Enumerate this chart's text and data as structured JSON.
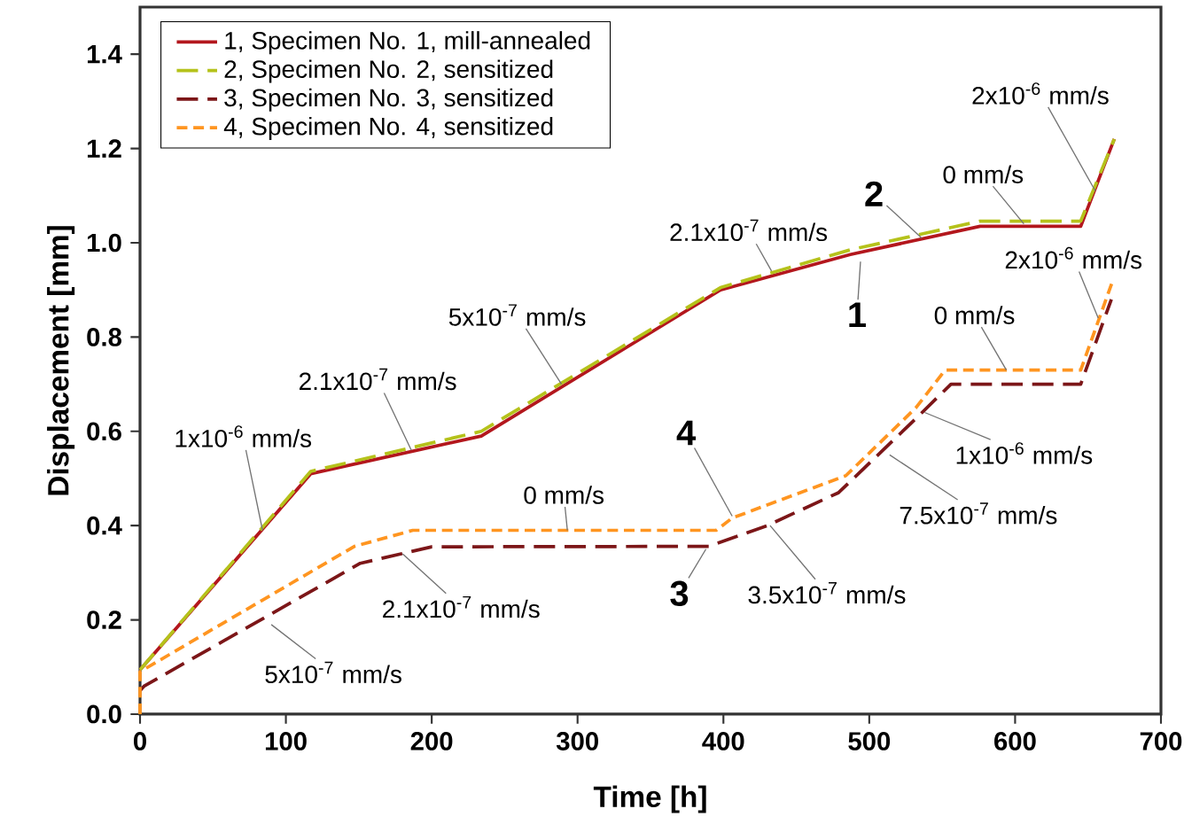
{
  "chart_data": {
    "type": "line",
    "xlabel": "Time [h]",
    "ylabel": "Displacement [mm]",
    "xlim": [
      0,
      700
    ],
    "ylim": [
      0,
      1.5
    ],
    "xticks": [
      0,
      100,
      200,
      300,
      400,
      500,
      600,
      700
    ],
    "yticks": [
      {
        "value": 0,
        "label": "0.0"
      },
      0.2,
      0.4,
      0.6,
      0.8,
      {
        "value": 1,
        "label": "1.0"
      },
      1.2,
      1.4
    ],
    "legend": "top left",
    "grid": false,
    "marker": "none",
    "series": [
      {
        "name": "1, Specimen No. 1, mill-annealed",
        "color": "#b3171d",
        "line_style": "solid",
        "x": [
          0,
          117,
          234,
          398,
          487,
          576,
          645,
          668
        ],
        "values": [
          0.094,
          0.51,
          0.59,
          0.9,
          0.975,
          1.035,
          1.035,
          1.22
        ]
      },
      {
        "name": "2, Specimen No. 2, sensitized",
        "color": "#b5c21b",
        "line_style": "dashed",
        "x": [
          0,
          117,
          234,
          398,
          487,
          576,
          645,
          668
        ],
        "values": [
          0.094,
          0.515,
          0.6,
          0.905,
          0.985,
          1.046,
          1.046,
          1.22
        ]
      },
      {
        "name": "3, Specimen No. 3, sensitized",
        "color": "#7c1618",
        "line_style": "dashed",
        "x": [
          0,
          3,
          151,
          200,
          390,
          430,
          479,
          533,
          556,
          645,
          666
        ],
        "values": [
          0.05,
          0.06,
          0.32,
          0.355,
          0.356,
          0.4,
          0.47,
          0.63,
          0.7,
          0.7,
          0.88
        ]
      },
      {
        "name": "4, Specimen No. 4, sensitized",
        "color": "#ff9520",
        "line_style": "dashed",
        "x": [
          0,
          0,
          147,
          187,
          395,
          406,
          484,
          532,
          552,
          645,
          667
        ],
        "values": [
          0.0,
          0.09,
          0.356,
          0.39,
          0.39,
          0.416,
          0.506,
          0.65,
          0.73,
          0.73,
          0.92
        ]
      }
    ],
    "annotations": [
      {
        "text": "1x10$^{-6}$ mm/s",
        "x": 84,
        "y": 0.39
      },
      {
        "text": "2.1x10$^{-7}$ mm/s",
        "x": 186,
        "y": 0.56
      },
      {
        "text": "5x10$^{-7}$ mm/s",
        "x": 289,
        "y": 0.7
      },
      {
        "text": "2.1x10$^{-7}$ mm/s",
        "x": 433,
        "y": 0.94
      },
      {
        "text": "2",
        "x": 536,
        "y": 1.01
      },
      {
        "text": "1",
        "x": 494,
        "y": 0.96
      },
      {
        "text": "0 mm/s",
        "x": 606,
        "y": 1.04
      },
      {
        "text": "2x10$^{-6}$ mm/s",
        "x": 655,
        "y": 1.11
      },
      {
        "text": "2x10$^{-6}$ mm/s",
        "x": 657,
        "y": 0.84
      },
      {
        "text": "0 mm/s",
        "x": 594,
        "y": 0.73
      },
      {
        "text": "1x10$^{-6}$ mm/s",
        "x": 538,
        "y": 0.64
      },
      {
        "text": "7.5x10$^{-7}$ mm/s",
        "x": 514,
        "y": 0.55
      },
      {
        "text": "3.5x10$^{-7}$ mm/s",
        "x": 432,
        "y": 0.4
      },
      {
        "text": "4",
        "x": 406,
        "y": 0.42
      },
      {
        "text": "3",
        "x": 388,
        "y": 0.35
      },
      {
        "text": "0 mm/s",
        "x": 293,
        "y": 0.39
      },
      {
        "text": "2.1x10$^{-7}$ mm/s",
        "x": 180,
        "y": 0.34
      },
      {
        "text": "5x10$^{-7}$ mm/s",
        "x": 90,
        "y": 0.19
      }
    ]
  }
}
